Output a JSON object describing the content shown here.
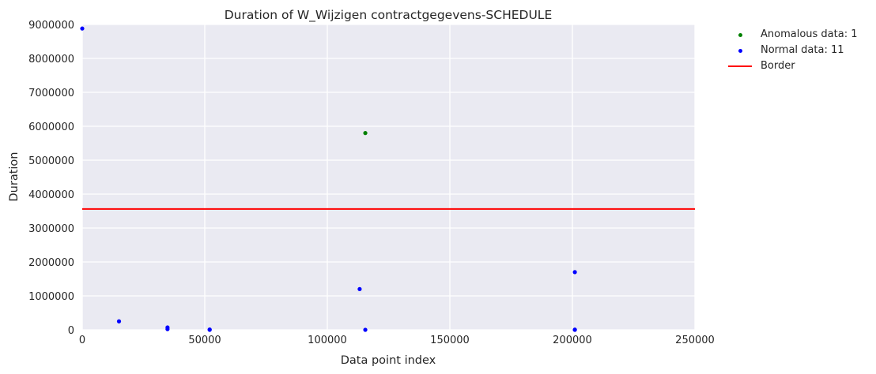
{
  "chart_data": {
    "type": "scatter",
    "title": "Duration of W_Wijzigen contractgegevens-SCHEDULE",
    "xlabel": "Data point index",
    "ylabel": "Duration",
    "xlim": [
      0,
      250000
    ],
    "ylim": [
      0,
      9000000
    ],
    "x_ticks": [
      "0",
      "50000",
      "100000",
      "150000",
      "200000",
      "250000"
    ],
    "y_ticks": [
      "0",
      "1000000",
      "2000000",
      "3000000",
      "4000000",
      "5000000",
      "6000000",
      "7000000",
      "8000000",
      "9000000"
    ],
    "grid": true,
    "legend_position": "outside-top-right",
    "series": [
      {
        "name": "Anomalous data: 1",
        "color": "#008000",
        "points": [
          [
            115500,
            5800000
          ]
        ]
      },
      {
        "name": "Normal data: 11",
        "color": "#0000ff",
        "points": [
          [
            0,
            8880000
          ],
          [
            15000,
            250000
          ],
          [
            34800,
            70000
          ],
          [
            34800,
            20000
          ],
          [
            52000,
            0
          ],
          [
            113200,
            1200000
          ],
          [
            115500,
            0
          ],
          [
            201000,
            1700000
          ],
          [
            201000,
            0
          ],
          [
            52000,
            10000
          ],
          [
            201000,
            5000
          ]
        ]
      }
    ],
    "border": {
      "name": "Border",
      "value": 3560000,
      "color": "#ff0000"
    }
  }
}
